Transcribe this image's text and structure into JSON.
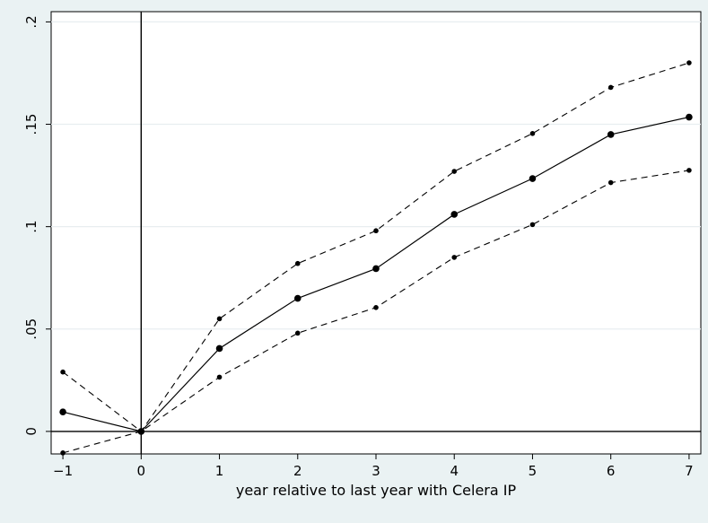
{
  "chart_data": {
    "type": "line",
    "title": "",
    "xlabel": "year relative to last year with Celera IP",
    "ylabel": "",
    "x": [
      -1,
      0,
      1,
      2,
      3,
      4,
      5,
      6,
      7
    ],
    "x_ticks": [
      -1,
      0,
      1,
      2,
      3,
      4,
      5,
      6,
      7
    ],
    "x_tick_labels": [
      "−1",
      "0",
      "1",
      "2",
      "3",
      "4",
      "5",
      "6",
      "7"
    ],
    "y_ticks": [
      0,
      0.05,
      0.1,
      0.15,
      0.2
    ],
    "y_tick_labels": [
      "0",
      ".05",
      ".1",
      ".15",
      ".2"
    ],
    "xlim": [
      -1.15,
      7.15
    ],
    "ylim": [
      -0.011,
      0.205
    ],
    "grid": "horizontal",
    "reference_lines": {
      "vertical_x": 0,
      "horizontal_y": 0
    },
    "series": [
      {
        "role": "estimate",
        "style": "solid",
        "marker": "large-dot",
        "values": [
          0.0095,
          0.0,
          0.0405,
          0.065,
          0.0795,
          0.106,
          0.1235,
          0.145,
          0.1535
        ]
      },
      {
        "role": "upper-ci",
        "style": "dashed",
        "marker": "small-dot",
        "values": [
          0.029,
          0.0,
          0.055,
          0.082,
          0.098,
          0.127,
          0.1455,
          0.168,
          0.18
        ]
      },
      {
        "role": "lower-ci",
        "style": "dashed",
        "marker": "small-dot",
        "values": [
          -0.0105,
          0.0,
          0.0265,
          0.048,
          0.0605,
          0.085,
          0.101,
          0.1215,
          0.1275
        ]
      }
    ],
    "colors": {
      "background": "#eaf2f3",
      "plot_background": "#ffffff",
      "line": "#000000",
      "grid": "#e8eef0"
    }
  }
}
